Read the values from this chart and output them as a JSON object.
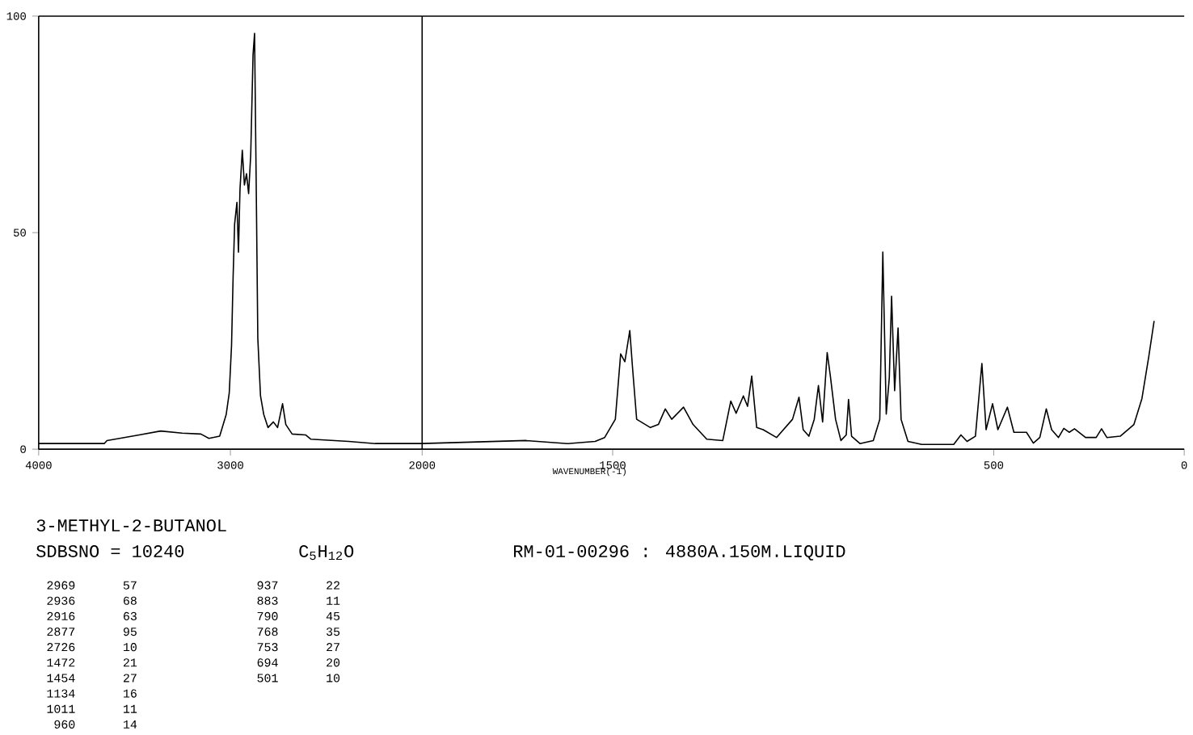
{
  "chart_data": [
    {
      "type": "line",
      "title": "3-METHYL-2-BUTANOL",
      "color": "#000000",
      "x": [
        4000,
        3658,
        3644,
        3476,
        3364,
        3252,
        3154,
        3112,
        3056,
        3022,
        3006,
        2994,
        2986,
        2978,
        2966,
        2958,
        2950,
        2938,
        2927,
        2916,
        2905,
        2894,
        2882,
        2874,
        2866,
        2857,
        2843,
        2826,
        2804,
        2776,
        2754,
        2728,
        2711,
        2678,
        2608,
        2580,
        2384,
        2244,
        2020,
        2000
      ],
      "values": [
        1.3,
        1.3,
        2,
        3.3,
        4.2,
        3.7,
        3.5,
        2.5,
        3,
        8,
        13,
        24,
        39.5,
        52,
        57,
        45.5,
        60,
        69,
        61,
        63.6,
        59,
        68,
        91,
        96,
        63.6,
        25.6,
        12.3,
        8,
        5,
        6.3,
        5,
        10.5,
        5.7,
        3.5,
        3.3,
        2.3,
        1.8,
        1.3,
        1.3,
        1.3
      ],
      "xlim": [
        4000,
        2000
      ],
      "ylim": [
        0,
        100
      ],
      "xticks": [
        4000,
        3000,
        2000
      ],
      "yticks": [
        0,
        50,
        100
      ],
      "annotations": [
        "SDBSNO = 10240",
        "C$_{5}$H$_{12}$O",
        "RM-01-00296 : 4880A.150M.LIQUID",
        "2969",
        "57",
        "2936",
        "68",
        "2916",
        "63",
        "2877",
        "95",
        "2726",
        "10",
        "1472",
        "21",
        "1454",
        "27",
        "1134",
        "16",
        "1011",
        "11",
        "960",
        "14",
        "937",
        "22",
        "883",
        "11",
        "790",
        "45",
        "768",
        "35",
        "753",
        "27",
        "694",
        "20",
        "501",
        "10"
      ]
    },
    {
      "type": "line",
      "xlabel": "WAVENUMBER(-1)",
      "color": "#000000",
      "tick_labels": "x",
      "x": [
        2000,
        1727,
        1618,
        1546,
        1521,
        1493,
        1479,
        1468,
        1455,
        1448,
        1437,
        1401,
        1380,
        1362,
        1345,
        1314,
        1289,
        1253,
        1211,
        1190,
        1176,
        1157,
        1146,
        1135,
        1122,
        1105,
        1070,
        1028,
        1011,
        1000,
        985,
        971,
        960,
        949,
        937,
        929,
        915,
        901,
        887,
        881,
        873,
        851,
        816,
        799,
        791,
        782,
        774,
        768,
        760,
        751,
        743,
        725,
        689,
        605,
        586,
        570,
        548,
        531,
        520,
        503,
        489,
        464,
        447,
        414,
        396,
        379,
        362,
        348,
        330,
        316,
        302,
        288,
        259,
        231,
        217,
        203,
        168,
        132,
        111,
        93,
        79
      ],
      "values": [
        1.3,
        2,
        1.3,
        1.8,
        2.7,
        6.9,
        22,
        20.2,
        27.4,
        19,
        6.9,
        5,
        5.7,
        9.3,
        6.9,
        9.7,
        5.7,
        2.3,
        2,
        11.1,
        8.3,
        12.3,
        9.9,
        16.9,
        5,
        4.5,
        2.7,
        6.9,
        12,
        4.5,
        3,
        6.9,
        14.7,
        6.3,
        22.3,
        17.1,
        6.9,
        2,
        3.3,
        11.5,
        3,
        1.3,
        2,
        6.9,
        45.5,
        8.1,
        16.5,
        35.3,
        13.5,
        28,
        6.9,
        1.8,
        1.1,
        1.1,
        3.3,
        1.8,
        3,
        19.8,
        4.5,
        10.5,
        4.5,
        9.7,
        3.9,
        3.9,
        1.4,
        2.7,
        9.3,
        4.5,
        2.7,
        4.8,
        3.9,
        4.7,
        2.7,
        2.7,
        4.7,
        2.7,
        3,
        5.7,
        11.7,
        21.4,
        29.6
      ],
      "xlim": [
        2000,
        0
      ],
      "ylim": [
        0,
        100
      ],
      "xticks": [
        1500,
        500,
        0
      ]
    }
  ]
}
